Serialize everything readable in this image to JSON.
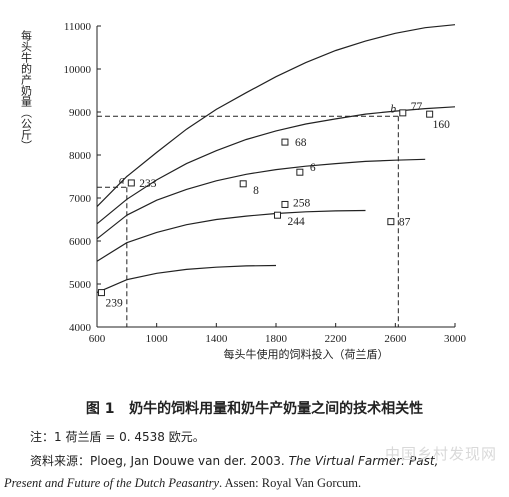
{
  "chart_data": {
    "type": "line",
    "title": "",
    "xlabel": "每头牛使用的饲料投入（荷兰盾）",
    "ylabel": "每头牛的产奶量（公斤）",
    "xlim": [
      600,
      3000
    ],
    "ylim": [
      4000,
      11000
    ],
    "xticks": [
      600,
      1000,
      1400,
      1800,
      2200,
      2600,
      3000
    ],
    "yticks": [
      4000,
      5000,
      6000,
      7000,
      8000,
      9000,
      10000,
      11000
    ],
    "curves": [
      {
        "x": [
          600,
          800,
          1000,
          1200,
          1400,
          1600,
          1800,
          2000,
          2200,
          2400,
          2600,
          2800,
          3000
        ],
        "y": [
          6800,
          7500,
          8060,
          8600,
          9060,
          9450,
          9820,
          10150,
          10430,
          10650,
          10830,
          10960,
          11030
        ]
      },
      {
        "x": [
          600,
          800,
          1000,
          1200,
          1400,
          1600,
          1800,
          2000,
          2200,
          2400,
          2600,
          2800,
          3000
        ],
        "y": [
          6400,
          6970,
          7420,
          7800,
          8100,
          8360,
          8560,
          8720,
          8840,
          8950,
          9020,
          9080,
          9120
        ]
      },
      {
        "x": [
          600,
          800,
          1000,
          1200,
          1400,
          1600,
          1800,
          2000,
          2200,
          2400,
          2600,
          2800
        ],
        "y": [
          6050,
          6600,
          6950,
          7200,
          7400,
          7550,
          7660,
          7740,
          7800,
          7850,
          7880,
          7900
        ]
      },
      {
        "x": [
          600,
          800,
          1000,
          1200,
          1400,
          1600,
          1800,
          2000,
          2200,
          2400
        ],
        "y": [
          5530,
          5960,
          6200,
          6380,
          6500,
          6580,
          6640,
          6680,
          6700,
          6710
        ]
      },
      {
        "x": [
          600,
          800,
          1000,
          1200,
          1400,
          1600,
          1800
        ],
        "y": [
          4800,
          5100,
          5250,
          5340,
          5390,
          5420,
          5430
        ]
      }
    ],
    "points": [
      {
        "label": "233",
        "x": 830,
        "y": 7350
      },
      {
        "label": "68",
        "x": 1860,
        "y": 8300
      },
      {
        "label": "6",
        "x": 1960,
        "y": 7600
      },
      {
        "label": "8",
        "x": 1580,
        "y": 7330
      },
      {
        "label": "258",
        "x": 1860,
        "y": 6850
      },
      {
        "label": "244",
        "x": 1810,
        "y": 6600
      },
      {
        "label": "87",
        "x": 2570,
        "y": 6450
      },
      {
        "label": "77",
        "x": 2650,
        "y": 8980
      },
      {
        "label": "160",
        "x": 2830,
        "y": 8950
      },
      {
        "label": "239",
        "x": 630,
        "y": 4800
      }
    ],
    "markers": [
      {
        "label": "a",
        "x": 800,
        "y": 7250
      },
      {
        "label": "b",
        "x": 2620,
        "y": 8900
      }
    ]
  },
  "caption": {
    "fig": "图 1",
    "text": "奶牛的饲料用量和奶牛产奶量之间的技术相关性"
  },
  "note": "注：1 荷兰盾 = 0. 4538 欧元。",
  "source": {
    "prefix": "资料来源：Ploeg, Jan Douwe van der. 2003. ",
    "title_part1": "The Virtual Farmer: Past,",
    "title_part2": "Present and Future of the Dutch Peasantry",
    "suffix": ". Assen: Royal Van Gorcum."
  },
  "watermark": "中国乡村发现网"
}
